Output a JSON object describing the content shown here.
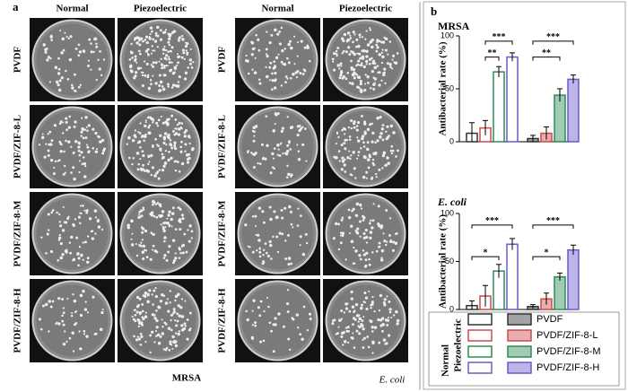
{
  "panel_a": {
    "label": "a",
    "blocks": [
      {
        "organism": "MRSA",
        "columns": [
          "Normal",
          "Piezoelectric"
        ],
        "rows": [
          "PVDF",
          "PVDF/ZIF-8-L",
          "PVDF/ZIF-8-M",
          "PVDF/ZIF-8-H"
        ]
      },
      {
        "organism": "E. coli",
        "columns": [
          "Normal",
          "Piezoelectric"
        ],
        "rows": [
          "PVDF",
          "PVDF/ZIF-8-L",
          "PVDF/ZIF-8-M",
          "PVDF/ZIF-8-H"
        ]
      }
    ]
  },
  "panel_b": {
    "label": "b"
  },
  "chart_data": [
    {
      "type": "bar",
      "title": "MRSA",
      "y_label": "Antibacterial rate (%)",
      "categories": [
        "Normal",
        "Piezoelectric"
      ],
      "series": [
        {
          "name": "PVDF",
          "color": "#333333",
          "values": [
            8,
            3
          ],
          "errors": [
            10,
            3
          ]
        },
        {
          "name": "PVDF/ZIF-8-L",
          "color": "#d04a4a",
          "values": [
            13,
            8
          ],
          "errors": [
            7,
            6
          ]
        },
        {
          "name": "PVDF/ZIF-8-M",
          "color": "#2e8b57",
          "values": [
            66,
            44
          ],
          "errors": [
            5,
            6
          ]
        },
        {
          "name": "PVDF/ZIF-8-H",
          "color": "#6a5acd",
          "values": [
            80,
            59
          ],
          "errors": [
            4,
            4
          ]
        }
      ],
      "annotations": [
        "***",
        "**",
        "***",
        "**"
      ],
      "ylim": [
        0,
        100
      ],
      "yticks": [
        0,
        50,
        100
      ]
    },
    {
      "type": "bar",
      "title": "E. coli",
      "y_label": "Antibacterial rate (%)",
      "series": [
        {
          "color": "#333333",
          "values": [
            4,
            3
          ],
          "errors": [
            5,
            2
          ]
        },
        {
          "color": "#d04a4a",
          "values": [
            14,
            11
          ],
          "errors": [
            11,
            6
          ]
        },
        {
          "color": "#2e8b57",
          "values": [
            40,
            34
          ],
          "errors": [
            7,
            4
          ]
        },
        {
          "color": "#6a5acd",
          "values": [
            68,
            62
          ],
          "errors": [
            6,
            5
          ]
        }
      ],
      "annotations": [
        "***",
        "*",
        "***",
        "*"
      ],
      "ylim": [
        0,
        100
      ],
      "yticks": [
        0,
        50,
        100
      ]
    }
  ]
}
